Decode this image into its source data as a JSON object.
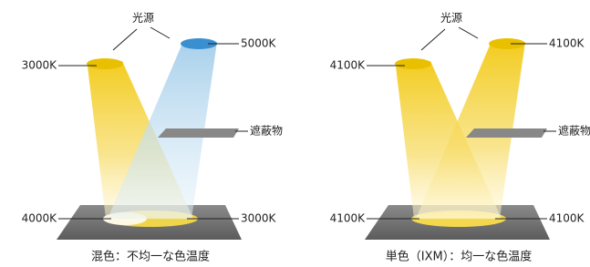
{
  "panels": [
    {
      "source_label": "光源",
      "top_left_label": "3000K",
      "top_right_label": "5000K",
      "shield_label": "遮蔽物",
      "bottom_left_label": "4000K",
      "bottom_right_label": "3000K",
      "caption": "混色：不均一な色温度"
    },
    {
      "source_label": "光源",
      "top_left_label": "4100K",
      "top_right_label": "4100K",
      "shield_label": "遮蔽物",
      "bottom_left_label": "4100K",
      "bottom_right_label": "4100K",
      "caption": "単色（IXM）：均一な色温度"
    }
  ]
}
